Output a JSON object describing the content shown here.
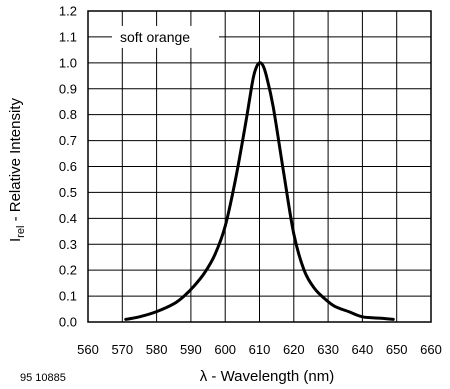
{
  "figure_ref": "95 10885",
  "chart_data": {
    "type": "line",
    "xlabel": "λ - Wavelength (nm)",
    "ylabel": {
      "main": "I",
      "sub": "rel",
      "rest": " - Relative Intensity"
    },
    "xlim": [
      560,
      660
    ],
    "ylim": [
      0.0,
      1.2
    ],
    "xticks": [
      "560",
      "570",
      "580",
      "590",
      "600",
      "610",
      "620",
      "630",
      "640",
      "650",
      "660"
    ],
    "yticks": [
      "0.0",
      "0.1",
      "0.2",
      "0.3",
      "0.4",
      "0.5",
      "0.6",
      "0.7",
      "0.8",
      "0.9",
      "1.0",
      "1.1",
      "1.2"
    ],
    "grid": true,
    "legend_position": "top-left",
    "series": [
      {
        "name": "soft orange",
        "color": "#000000",
        "x": [
          571,
          575,
          580,
          585,
          588,
          591,
          594,
          597,
          600,
          603,
          606,
          608,
          609,
          610,
          611,
          612,
          614,
          617,
          620,
          623,
          626,
          629,
          632,
          636,
          640,
          645,
          649
        ],
        "y": [
          0.01,
          0.02,
          0.04,
          0.07,
          0.1,
          0.14,
          0.19,
          0.26,
          0.37,
          0.55,
          0.77,
          0.93,
          0.98,
          1.0,
          0.99,
          0.95,
          0.83,
          0.58,
          0.34,
          0.2,
          0.13,
          0.09,
          0.06,
          0.04,
          0.02,
          0.015,
          0.01
        ]
      }
    ]
  }
}
